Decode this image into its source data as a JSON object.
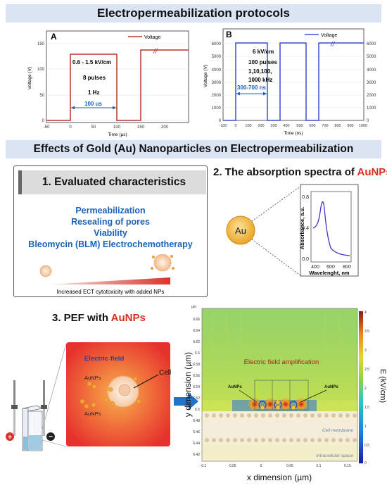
{
  "banners": {
    "top": "Electropermeabilization protocols",
    "middle": "Effects of Gold (Au) Nanoparticles on Electropermeabilization"
  },
  "panel_a": {
    "letter": "A",
    "legend": "Voltage",
    "ylabel": "Voltage (V)",
    "xlabel": "Time (µs)",
    "x_ticks": [
      "-50",
      "0",
      "50",
      "100",
      "150",
      "200"
    ],
    "y_ticks": [
      "0",
      "50",
      "100",
      "150"
    ],
    "field": "0.6 - 1.5 kV/cm",
    "pulses": "8 pulses",
    "freq": "1 Hz",
    "width": "100 us",
    "color": "#b5332b"
  },
  "panel_b": {
    "letter": "B",
    "legend": "Voltage",
    "ylabel": "Voltage (V)",
    "xlabel": "Time (ns)",
    "x_ticks": [
      "-100",
      "0",
      "100",
      "200",
      "300",
      "400",
      "500",
      "600",
      "700",
      "800",
      "900",
      "1000"
    ],
    "y_ticks": [
      "0",
      "1000",
      "2000",
      "3000",
      "4000",
      "5000",
      "6000"
    ],
    "field": "6 kV/cm",
    "pulses": "100 pulses",
    "freq1": "1,10,100,",
    "freq2": "1000 kHz",
    "width": "300-700 ns",
    "color": "#3b4fd8"
  },
  "section1": {
    "title": "1.  Evaluated characteristics",
    "items": [
      "Permeabilization",
      "Resealing of pores",
      "Viability",
      "Bleomycin (BLM) Electrochemotherapy"
    ],
    "caption": "Increased ECT cytotoxicity with added NPs"
  },
  "section2": {
    "title_prefix": "2. The absorption spectra of ",
    "title_highlight": "AuNPs",
    "particle": "Au",
    "ylabel": "Absorbance, a.u.",
    "xlabel": "Wavelenght, nm",
    "x_ticks": [
      "400",
      "600",
      "800"
    ],
    "y_ticks": [
      "0.0",
      "0.4",
      "0.8"
    ]
  },
  "section3": {
    "title_prefix": "3. PEF with ",
    "title_highlight": "AuNPs",
    "field_label": "Electric field",
    "aunps1": "AuNPs",
    "aunps2": "AuNPs",
    "cell": "Cell",
    "plus": "+",
    "minus": "−"
  },
  "simulation": {
    "unit_top": "µm",
    "amplification": "Electric field amplification",
    "aunps_left": "AuNPs",
    "aunps_right": "AuNPs",
    "membrane": "Cell membrane",
    "intracellular": "Intracellular space",
    "ylabel": "y dimension (µm)",
    "xlabel": "x dimension (µm)",
    "y_ticks": [
      "6.66",
      "6.64",
      "6.62",
      "6.6",
      "6.58",
      "6.56",
      "6.54",
      "6.52",
      "6.5",
      "6.48",
      "6.46",
      "6.44",
      "6.42"
    ],
    "x_ticks": [
      "-0.1",
      "-0.05",
      "0",
      "0.05",
      "0.1",
      "0.15"
    ],
    "cbar_ticks": [
      "4",
      "3.5",
      "3",
      "2.5",
      "2",
      "1.5",
      "1",
      "0.5",
      "0"
    ],
    "cbar_label": "E (kV/cm)"
  }
}
